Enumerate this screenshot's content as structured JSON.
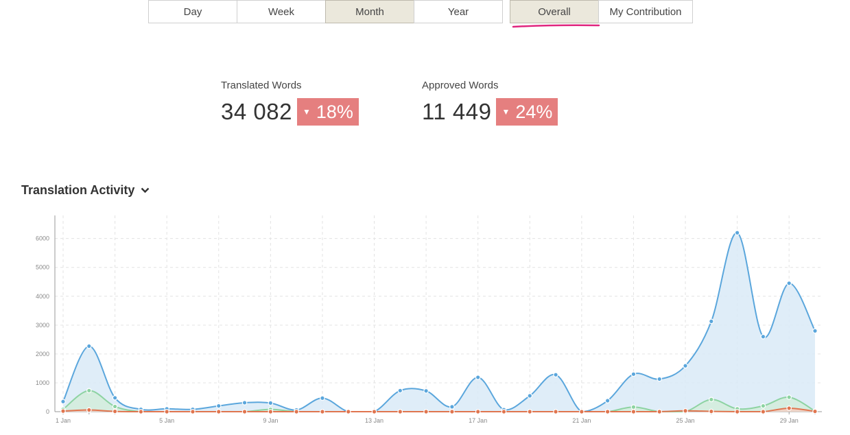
{
  "period_tabs": [
    {
      "label": "Day",
      "active": false
    },
    {
      "label": "Week",
      "active": false
    },
    {
      "label": "Month",
      "active": true
    },
    {
      "label": "Year",
      "active": false
    }
  ],
  "scope_tabs": [
    {
      "label": "Overall",
      "active": true
    },
    {
      "label": "My Contribution",
      "active": false
    }
  ],
  "stats": {
    "translated": {
      "label": "Translated Words",
      "value": "34 082",
      "change": "18%",
      "direction": "down"
    },
    "approved": {
      "label": "Approved Words",
      "value": "11 449",
      "change": "24%",
      "direction": "down"
    }
  },
  "section": {
    "title": "Translation Activity",
    "icon": "chevron-down-icon"
  },
  "colors": {
    "accent_underline": "#e0257e",
    "badge": "#e57f7f",
    "active_tab": "#ebe8dc"
  },
  "chart_data": {
    "type": "area",
    "title": "",
    "xlabel": "",
    "ylabel": "",
    "ylim": [
      0,
      6800
    ],
    "yticks": [
      0,
      1000,
      2000,
      3000,
      4000,
      5000,
      6000
    ],
    "grid": true,
    "x": [
      1,
      2,
      3,
      4,
      5,
      6,
      7,
      8,
      9,
      10,
      11,
      12,
      13,
      14,
      15,
      16,
      17,
      18,
      19,
      20,
      21,
      22,
      23,
      24,
      25,
      26,
      27,
      28,
      29,
      30
    ],
    "xtick_labels": [
      {
        "day": 1,
        "label": "1 Jan"
      },
      {
        "day": 5,
        "label": "5 Jan"
      },
      {
        "day": 9,
        "label": "9 Jan"
      },
      {
        "day": 13,
        "label": "13 Jan"
      },
      {
        "day": 17,
        "label": "17 Jan"
      },
      {
        "day": 21,
        "label": "21 Jan"
      },
      {
        "day": 25,
        "label": "25 Jan"
      },
      {
        "day": 29,
        "label": "29 Jan"
      }
    ],
    "series": [
      {
        "color": "#5aa6dc",
        "fill": "#d9eaf7",
        "values": [
          350,
          2270,
          480,
          80,
          100,
          80,
          200,
          310,
          300,
          60,
          470,
          0,
          0,
          730,
          720,
          170,
          1190,
          70,
          550,
          1280,
          0,
          380,
          1300,
          1130,
          1590,
          3130,
          6200,
          2600,
          4450,
          2800
        ]
      },
      {
        "color": "#8dd3a2",
        "fill": "#d4ecdc",
        "values": [
          80,
          730,
          180,
          0,
          0,
          0,
          0,
          0,
          80,
          0,
          0,
          0,
          0,
          0,
          0,
          0,
          0,
          0,
          0,
          0,
          0,
          0,
          160,
          0,
          0,
          420,
          100,
          200,
          500,
          20
        ]
      },
      {
        "color": "#e0754f",
        "fill": "#f3cfc2",
        "values": [
          20,
          60,
          10,
          0,
          0,
          0,
          0,
          0,
          0,
          0,
          0,
          0,
          0,
          0,
          0,
          0,
          0,
          0,
          0,
          0,
          0,
          0,
          0,
          0,
          30,
          10,
          0,
          0,
          120,
          10
        ]
      }
    ]
  }
}
